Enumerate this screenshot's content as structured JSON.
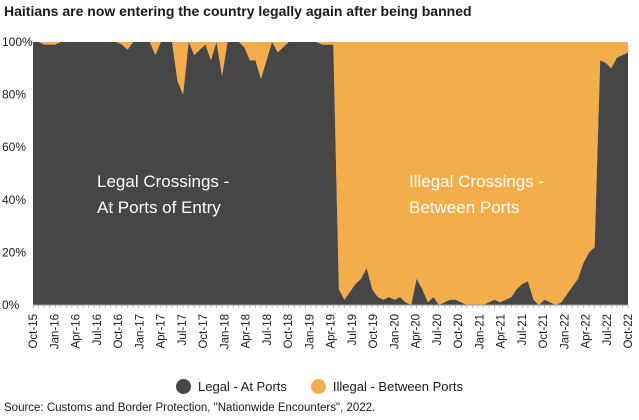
{
  "chart_data": {
    "type": "area",
    "title": "Haitians are now entering the country legally again after being banned",
    "source": "Source: Customs and Border Protection, \"Nationwide Encounters\", 2022.",
    "stacked_percent": true,
    "ylim": [
      0,
      100
    ],
    "y_ticks": [
      "0%",
      "20%",
      "40%",
      "60%",
      "80%",
      "100%"
    ],
    "x_tick_labels": [
      "Oct-15",
      "Jan-16",
      "Apr-16",
      "Jul-16",
      "Oct-16",
      "Jan-17",
      "Apr-17",
      "Jul-17",
      "Oct-17",
      "Jan-18",
      "Apr-18",
      "Jul-18",
      "Oct-18",
      "Jan-19",
      "Apr-19",
      "Jul-19",
      "Oct-19",
      "Jan-20",
      "Apr-20",
      "Jul-20",
      "Oct-20",
      "Jan-21",
      "Apr-21",
      "Jul-21",
      "Oct-21",
      "Jan-22",
      "Apr-22",
      "Jul-22",
      "Oct-22"
    ],
    "colors": {
      "legal": "#464646",
      "illegal": "#f3ad4a",
      "text": "#ffffff"
    },
    "annotations": [
      {
        "lines": [
          "Legal Crossings -",
          "At Ports of Entry"
        ]
      },
      {
        "lines": [
          "Illegal Crossings -",
          "Between Ports"
        ]
      }
    ],
    "series": [
      {
        "name": "Legal - At Ports",
        "values": [
          100,
          100,
          99,
          99,
          99,
          100,
          100,
          100,
          100,
          100,
          100,
          100,
          100,
          100,
          100,
          100,
          99,
          97,
          100,
          100,
          100,
          100,
          95,
          100,
          100,
          100,
          85,
          80,
          100,
          95,
          97,
          99,
          93,
          100,
          87,
          100,
          100,
          100,
          98,
          93,
          93,
          86,
          93,
          100,
          96,
          98,
          100,
          100,
          100,
          100,
          100,
          100,
          99,
          99,
          99,
          6,
          2,
          5,
          8,
          10,
          14,
          6,
          3,
          2,
          3,
          2,
          3,
          1,
          0,
          10,
          6,
          1,
          3,
          0,
          1,
          2,
          2,
          1,
          0,
          0,
          0,
          0,
          1,
          2,
          1,
          2,
          3,
          6,
          8,
          9,
          2,
          0,
          2,
          1,
          0,
          1,
          4,
          7,
          10,
          16,
          20,
          22,
          93,
          92,
          90,
          94,
          95,
          96
        ]
      },
      {
        "name": "Illegal - Between Ports",
        "values": [
          0,
          0,
          1,
          1,
          1,
          0,
          0,
          0,
          0,
          0,
          0,
          0,
          0,
          0,
          0,
          0,
          1,
          3,
          0,
          0,
          0,
          0,
          5,
          0,
          0,
          0,
          15,
          20,
          0,
          5,
          3,
          1,
          7,
          0,
          13,
          0,
          0,
          0,
          2,
          7,
          7,
          14,
          7,
          0,
          4,
          2,
          0,
          0,
          0,
          0,
          0,
          0,
          1,
          1,
          1,
          94,
          98,
          95,
          92,
          90,
          86,
          94,
          97,
          98,
          97,
          98,
          97,
          99,
          100,
          90,
          94,
          99,
          97,
          100,
          99,
          98,
          98,
          99,
          100,
          100,
          100,
          100,
          99,
          98,
          99,
          98,
          97,
          94,
          92,
          91,
          98,
          100,
          98,
          99,
          100,
          99,
          96,
          93,
          90,
          84,
          80,
          78,
          7,
          8,
          10,
          6,
          5,
          4
        ]
      }
    ]
  }
}
